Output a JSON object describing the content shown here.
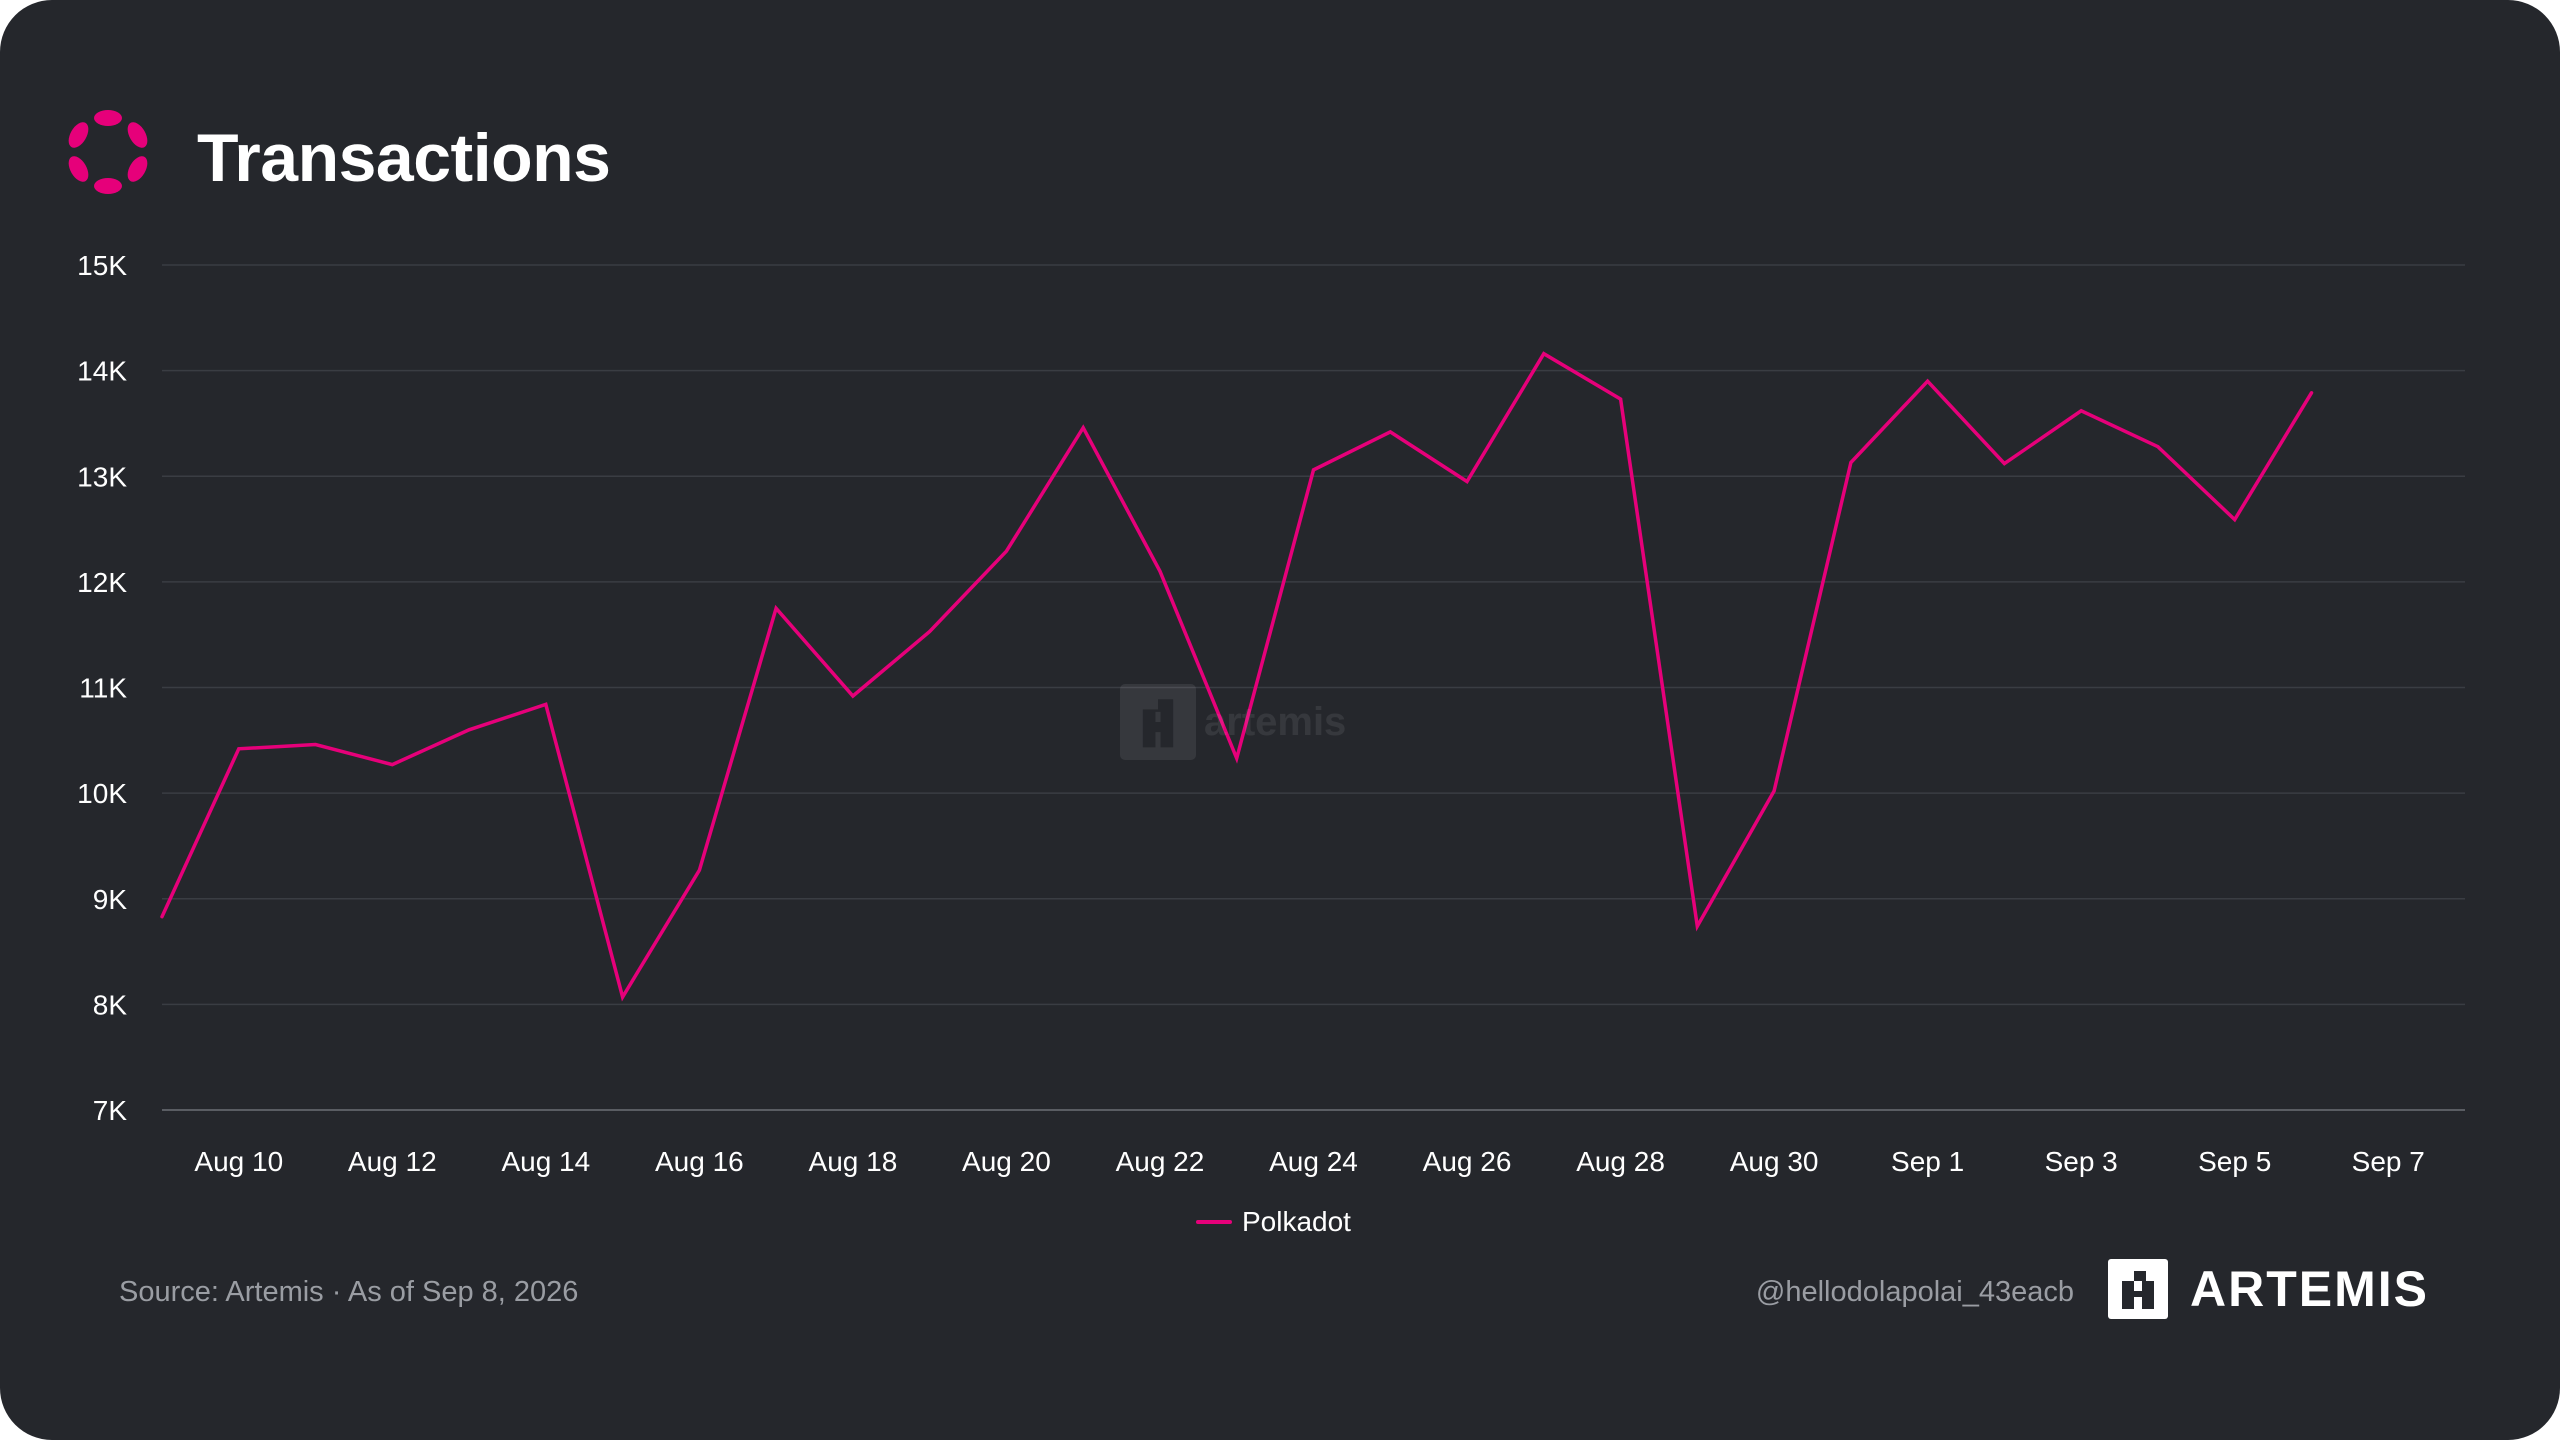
{
  "header": {
    "title": "Transactions",
    "logo_icon": "polkadot-logo-icon",
    "accent_color": "#e6007a"
  },
  "chart_data": {
    "type": "line",
    "title": "Transactions",
    "xlabel": "",
    "ylabel": "",
    "ylim": [
      7000,
      15000
    ],
    "yticks": [
      7000,
      8000,
      9000,
      10000,
      11000,
      12000,
      13000,
      14000,
      15000
    ],
    "ytick_labels": [
      "7K",
      "8K",
      "9K",
      "10K",
      "11K",
      "12K",
      "13K",
      "14K",
      "15K"
    ],
    "x": [
      "2026-08-09",
      "2026-08-10",
      "2026-08-11",
      "2026-08-12",
      "2026-08-13",
      "2026-08-14",
      "2026-08-15",
      "2026-08-16",
      "2026-08-17",
      "2026-08-18",
      "2026-08-19",
      "2026-08-20",
      "2026-08-21",
      "2026-08-22",
      "2026-08-23",
      "2026-08-24",
      "2026-08-25",
      "2026-08-26",
      "2026-08-27",
      "2026-08-28",
      "2026-08-29",
      "2026-08-30",
      "2026-08-31",
      "2026-09-01",
      "2026-09-02",
      "2026-09-03",
      "2026-09-04",
      "2026-09-05",
      "2026-09-06"
    ],
    "xlim": [
      "2026-08-09",
      "2026-09-08"
    ],
    "xtick_labels": [
      "Aug 10",
      "Aug 12",
      "Aug 14",
      "Aug 16",
      "Aug 18",
      "Aug 20",
      "Aug 22",
      "Aug 24",
      "Aug 26",
      "Aug 28",
      "Aug 30",
      "Sep 1",
      "Sep 3",
      "Sep 5",
      "Sep 7"
    ],
    "xtick_dates": [
      "2026-08-10",
      "2026-08-12",
      "2026-08-14",
      "2026-08-16",
      "2026-08-18",
      "2026-08-20",
      "2026-08-22",
      "2026-08-24",
      "2026-08-26",
      "2026-08-28",
      "2026-08-30",
      "2026-09-01",
      "2026-09-03",
      "2026-09-05",
      "2026-09-07"
    ],
    "series": [
      {
        "name": "Polkadot",
        "color": "#e6007a",
        "values": [
          8830,
          10420,
          10460,
          10270,
          10600,
          10840,
          8070,
          9270,
          11750,
          10920,
          11530,
          12290,
          13460,
          12100,
          10330,
          13060,
          13420,
          12950,
          14160,
          13730,
          8740,
          10020,
          13130,
          13900,
          13120,
          13620,
          13280,
          12590,
          13790
        ]
      }
    ],
    "grid": true,
    "legend": "bottom-center"
  },
  "legend": {
    "label": "Polkadot",
    "color": "#e6007a"
  },
  "footer": {
    "source": "Source: Artemis · As of Sep 8, 2026",
    "handle": "@hellodolapolai_43eacb",
    "brand": "ARTEMIS",
    "brand_icon": "artemis-logo-icon"
  },
  "watermark": {
    "text": "artemis",
    "icon": "artemis-watermark-icon"
  }
}
